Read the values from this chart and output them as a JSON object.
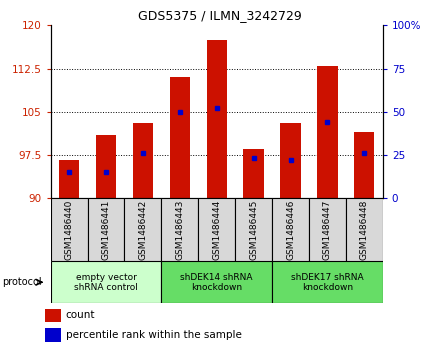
{
  "title": "GDS5375 / ILMN_3242729",
  "samples": [
    "GSM1486440",
    "GSM1486441",
    "GSM1486442",
    "GSM1486443",
    "GSM1486444",
    "GSM1486445",
    "GSM1486446",
    "GSM1486447",
    "GSM1486448"
  ],
  "counts": [
    96.5,
    101.0,
    103.0,
    111.0,
    117.5,
    98.5,
    103.0,
    113.0,
    101.5
  ],
  "percentile_ranks": [
    15,
    15,
    26,
    50,
    52,
    23,
    22,
    44,
    26
  ],
  "ymin": 90,
  "ymax": 120,
  "yticks": [
    90,
    97.5,
    105,
    112.5,
    120
  ],
  "y2min": 0,
  "y2max": 100,
  "y2ticks": [
    0,
    25,
    50,
    75,
    100
  ],
  "bar_color": "#cc1100",
  "percentile_color": "#0000cc",
  "bar_width": 0.55,
  "groups": [
    {
      "label": "empty vector\nshRNA control",
      "start": 0,
      "end": 3,
      "color": "#ccffcc"
    },
    {
      "label": "shDEK14 shRNA\nknockdown",
      "start": 3,
      "end": 6,
      "color": "#66dd66"
    },
    {
      "label": "shDEK17 shRNA\nknockdown",
      "start": 6,
      "end": 9,
      "color": "#66dd66"
    }
  ],
  "bg_color": "#ffffff",
  "left_label_color": "#cc2200",
  "right_label_color": "#0000cc",
  "cell_color": "#d8d8d8",
  "title_fontsize": 9,
  "axis_fontsize": 7.5,
  "label_fontsize": 6.5,
  "group_fontsize": 6.5,
  "legend_fontsize": 7.5
}
